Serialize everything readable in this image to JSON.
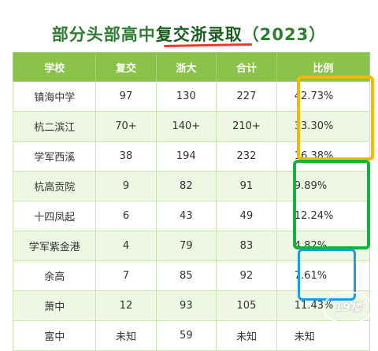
{
  "title": {
    "prefix": "部分头部高中",
    "highlight": "复交浙录取",
    "suffix": "（2023）"
  },
  "table": {
    "headers": [
      "学校",
      "复交",
      "浙大",
      "合计",
      "比例"
    ],
    "rows": [
      [
        "镇海中学",
        "97",
        "130",
        "227",
        "42.73%"
      ],
      [
        "杭二滨江",
        "70+",
        "140+",
        "210+",
        "33.30%"
      ],
      [
        "学军西溪",
        "38",
        "194",
        "232",
        "16.38%"
      ],
      [
        "杭高贡院",
        "9",
        "82",
        "91",
        "9.89%"
      ],
      [
        "十四凤起",
        "6",
        "43",
        "49",
        "12.24%"
      ],
      [
        "学军紫金港",
        "4",
        "79",
        "83",
        "4.82%"
      ],
      [
        "余高",
        "7",
        "85",
        "92",
        "7.61%"
      ],
      [
        "萧中",
        "12",
        "93",
        "105",
        "11.43%"
      ],
      [
        "富中",
        "未知",
        "59",
        "未知",
        "未知"
      ]
    ]
  },
  "annotations": {
    "yellow_color": "#f5b800",
    "green_color": "#12b33a",
    "blue_color": "#1e9be8"
  },
  "watermark": {
    "text": "19楼"
  }
}
